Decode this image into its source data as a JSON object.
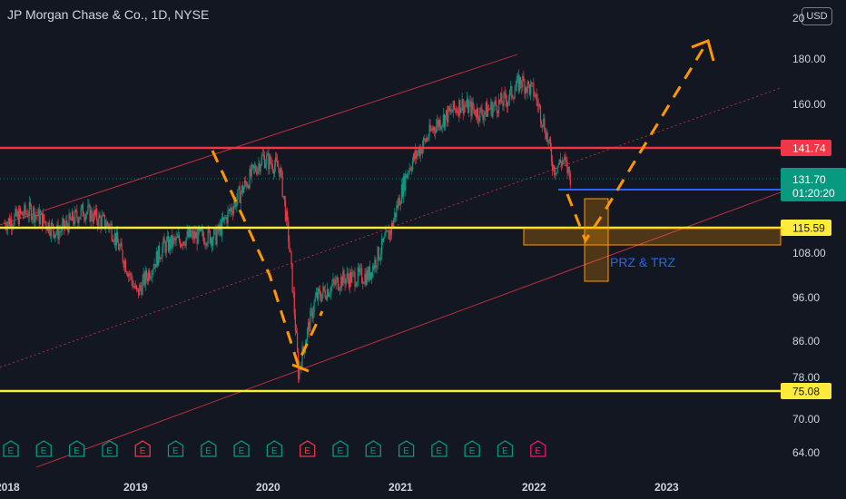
{
  "header": {
    "title": "JP Morgan Chase & Co., 1D, NYSE",
    "currency_button": "USD"
  },
  "chart_data": {
    "type": "candlestick",
    "title": "JP Morgan Chase & Co., 1D, NYSE",
    "price_ticks": [
      "20",
      "180.00",
      "160.00",
      "108.00",
      "96.00",
      "86.00",
      "78.00",
      "70.00",
      "64.00"
    ],
    "time_ticks": [
      "2018",
      "2019",
      "2020",
      "2021",
      "2022",
      "2023"
    ],
    "horizontal_levels": [
      {
        "label": "141.74",
        "color": "#f23645"
      },
      {
        "label": "127.86",
        "color": "#2962ff"
      },
      {
        "label": "115.59",
        "color": "#ffeb3b"
      },
      {
        "label": "75.08",
        "color": "#ffeb3b"
      }
    ],
    "current_price": {
      "label": "131.70",
      "countdown": "01:20:20",
      "color": "#089981"
    },
    "zone_label": "PRZ & TRZ",
    "earnings_markers": [
      "E",
      "E",
      "E",
      "E",
      "E",
      "E",
      "E",
      "E",
      "E",
      "E",
      "E",
      "E",
      "E",
      "E",
      "E",
      "E",
      "E"
    ],
    "price_path": [
      [
        2018.0,
        117
      ],
      [
        2018.2,
        121
      ],
      [
        2018.4,
        114
      ],
      [
        2018.6,
        121
      ],
      [
        2018.8,
        116
      ],
      [
        2019.0,
        97
      ],
      [
        2019.2,
        110
      ],
      [
        2019.4,
        113
      ],
      [
        2019.6,
        113
      ],
      [
        2019.8,
        128
      ],
      [
        2019.95,
        139
      ],
      [
        2020.08,
        135
      ],
      [
        2020.15,
        111
      ],
      [
        2020.22,
        79
      ],
      [
        2020.35,
        96
      ],
      [
        2020.55,
        101
      ],
      [
        2020.75,
        102
      ],
      [
        2020.92,
        115
      ],
      [
        2021.05,
        135
      ],
      [
        2021.25,
        151
      ],
      [
        2021.45,
        160
      ],
      [
        2021.6,
        156
      ],
      [
        2021.8,
        162
      ],
      [
        2021.9,
        170
      ],
      [
        2022.0,
        165
      ],
      [
        2022.08,
        151
      ],
      [
        2022.15,
        135
      ],
      [
        2022.22,
        138
      ],
      [
        2022.28,
        131.7
      ]
    ]
  }
}
